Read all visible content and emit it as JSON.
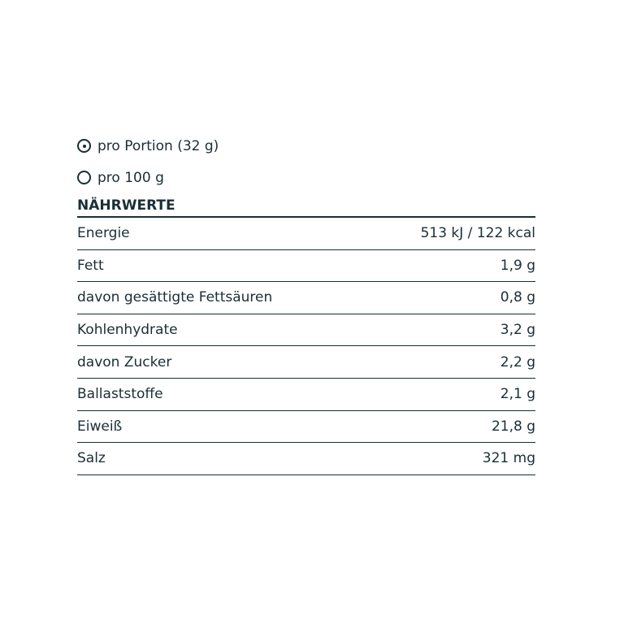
{
  "options": [
    {
      "label": "pro Portion (32 g)",
      "selected": true
    },
    {
      "label": "pro 100 g",
      "selected": false
    }
  ],
  "table": {
    "title": "NÄHRWERTE",
    "rows": [
      {
        "name": "Energie",
        "value": "513 kJ / 122 kcal"
      },
      {
        "name": "Fett",
        "value": "1,9 g"
      },
      {
        "name": "davon gesättigte Fettsäuren",
        "value": "0,8 g"
      },
      {
        "name": "Kohlenhydrate",
        "value": "3,2 g"
      },
      {
        "name": "davon Zucker",
        "value": "2,2 g"
      },
      {
        "name": "Ballaststoffe",
        "value": "2,1 g"
      },
      {
        "name": "Eiweiß",
        "value": "21,8 g"
      },
      {
        "name": "Salz",
        "value": "321 mg"
      }
    ]
  }
}
